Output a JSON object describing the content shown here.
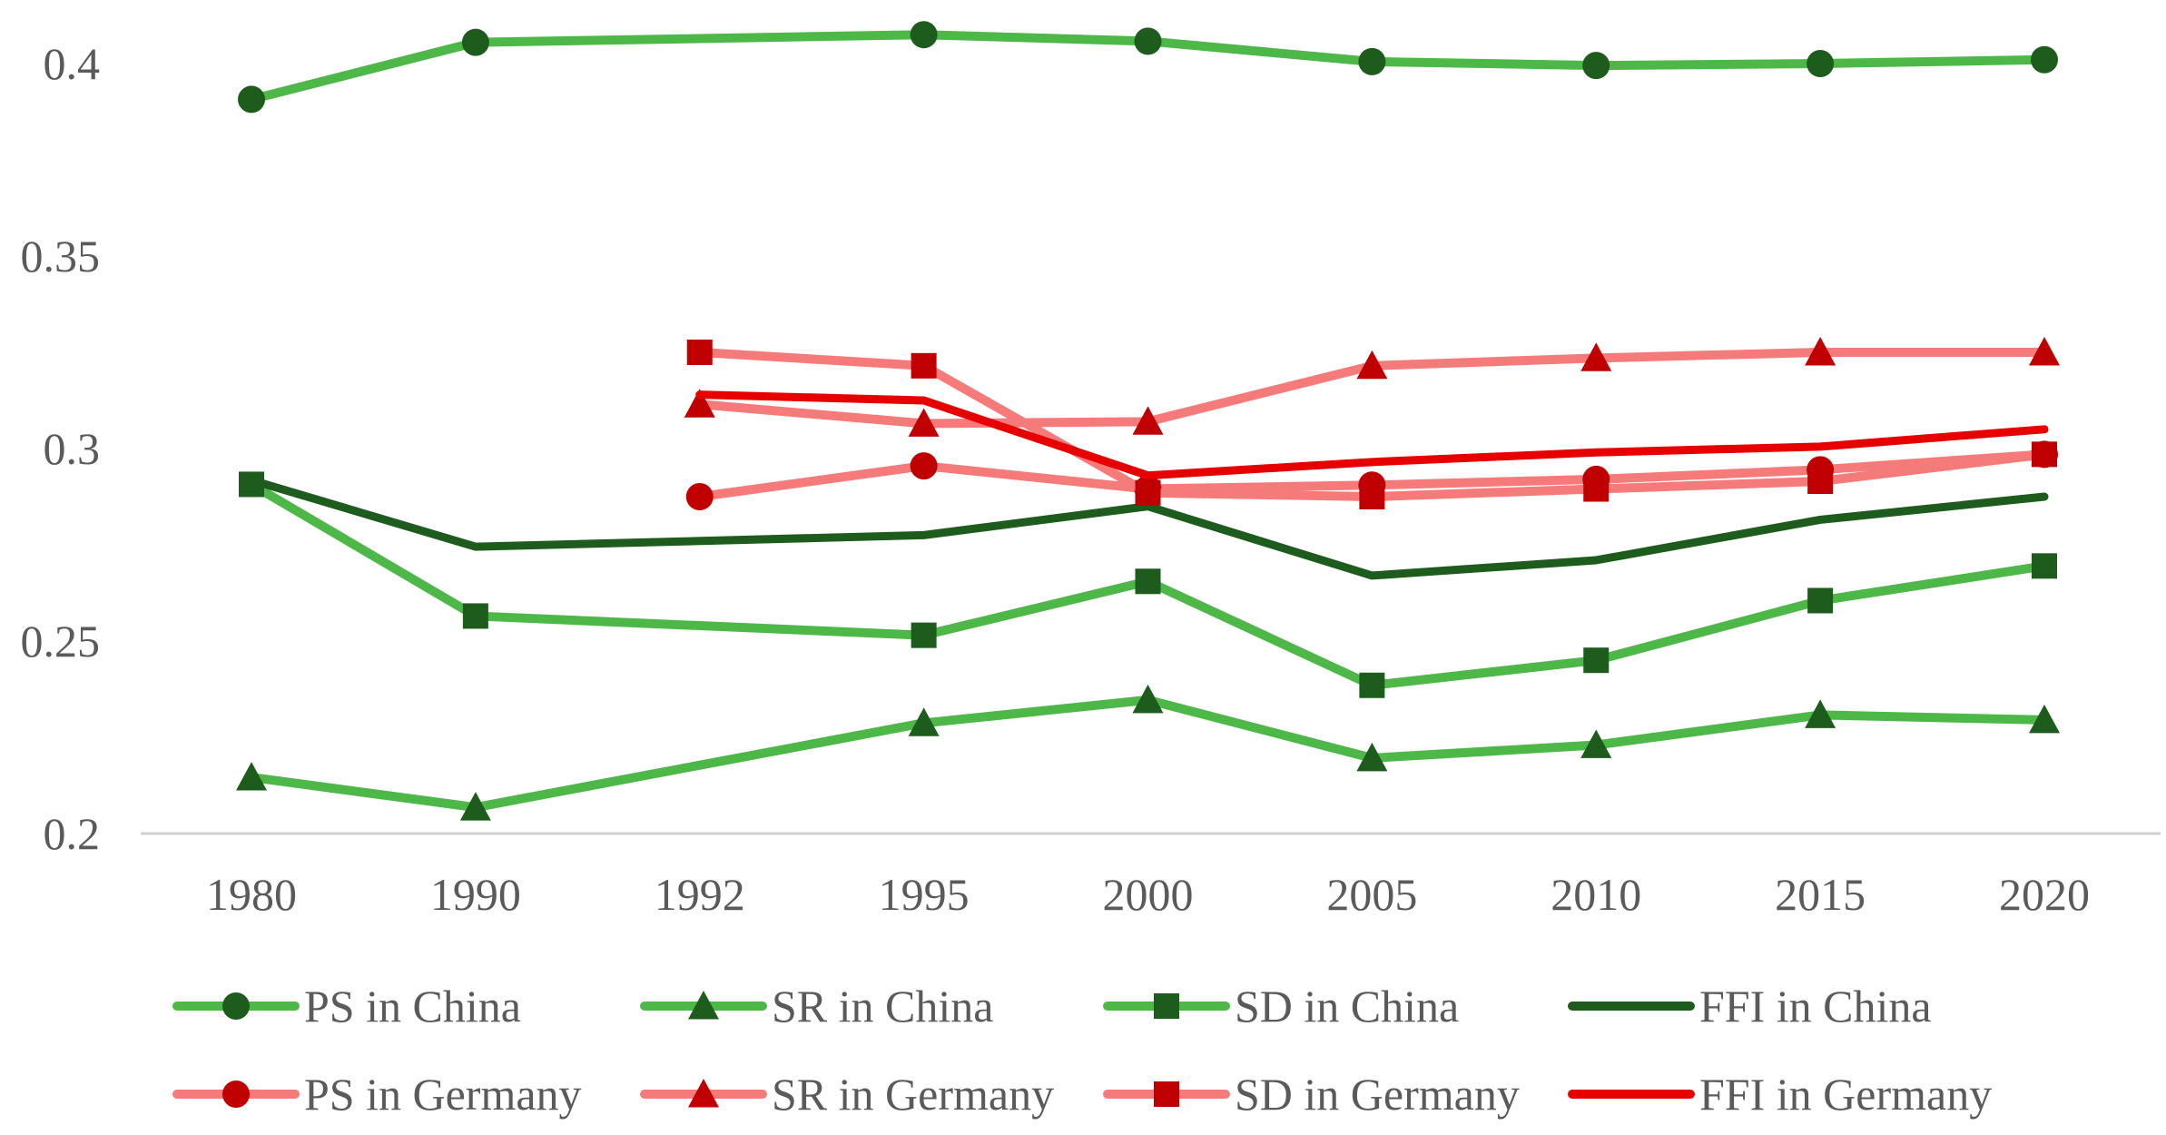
{
  "chart_data": {
    "type": "line",
    "title": "",
    "xlabel": "",
    "ylabel": "",
    "categories": [
      "1980",
      "1990",
      "1992",
      "1995",
      "2000",
      "2005",
      "2010",
      "2015",
      "2020"
    ],
    "ylim": [
      0.2,
      0.4
    ],
    "yticks": [
      "0.2",
      "0.25",
      "0.3",
      "0.35",
      "0.4"
    ],
    "grid": false,
    "legend_position": "bottom",
    "series": [
      {
        "name": "PS in China",
        "color": "#4db848",
        "marker": "circle",
        "marker_color": "#1e5c1e",
        "values": [
          0.3907,
          0.4055,
          null,
          0.4075,
          0.4058,
          0.4005,
          0.3995,
          0.4,
          0.401
        ]
      },
      {
        "name": "SR in China",
        "color": "#4db848",
        "marker": "triangle",
        "marker_color": "#1e5c1e",
        "values": [
          0.2146,
          0.2068,
          null,
          0.2287,
          0.2347,
          0.2196,
          0.223,
          0.2308,
          0.2295
        ]
      },
      {
        "name": "SD in China",
        "color": "#4db848",
        "marker": "square",
        "marker_color": "#1e5c1e",
        "values": [
          0.2907,
          0.2565,
          null,
          0.2515,
          0.2655,
          0.2385,
          0.245,
          0.2605,
          0.2695
        ]
      },
      {
        "name": "FFI in China",
        "color": "#1e5c1e",
        "marker": "none",
        "marker_color": "#1e5c1e",
        "values": [
          0.2918,
          0.2745,
          null,
          0.2775,
          0.285,
          0.267,
          0.271,
          0.2815,
          0.2875
        ]
      },
      {
        "name": "PS in Germany",
        "color": "#f57a7a",
        "marker": "circle",
        "marker_color": "#c00000",
        "values": [
          null,
          null,
          0.2875,
          0.2955,
          0.2895,
          0.2905,
          0.292,
          0.2945,
          0.2985
        ]
      },
      {
        "name": "SR in Germany",
        "color": "#f57a7a",
        "marker": "triangle",
        "marker_color": "#c00000",
        "values": [
          null,
          null,
          0.3115,
          0.3065,
          0.307,
          0.3215,
          0.3235,
          0.325,
          0.325
        ]
      },
      {
        "name": "SD in Germany",
        "color": "#f57a7a",
        "marker": "square",
        "marker_color": "#c00000",
        "values": [
          null,
          null,
          0.325,
          0.3215,
          0.2885,
          0.2875,
          0.2895,
          0.2915,
          0.2985
        ]
      },
      {
        "name": "FFI in Germany",
        "color": "#e60000",
        "marker": "none",
        "marker_color": "#e60000",
        "values": [
          null,
          null,
          0.314,
          0.3125,
          0.293,
          0.2965,
          0.299,
          0.3005,
          0.305
        ]
      }
    ]
  }
}
